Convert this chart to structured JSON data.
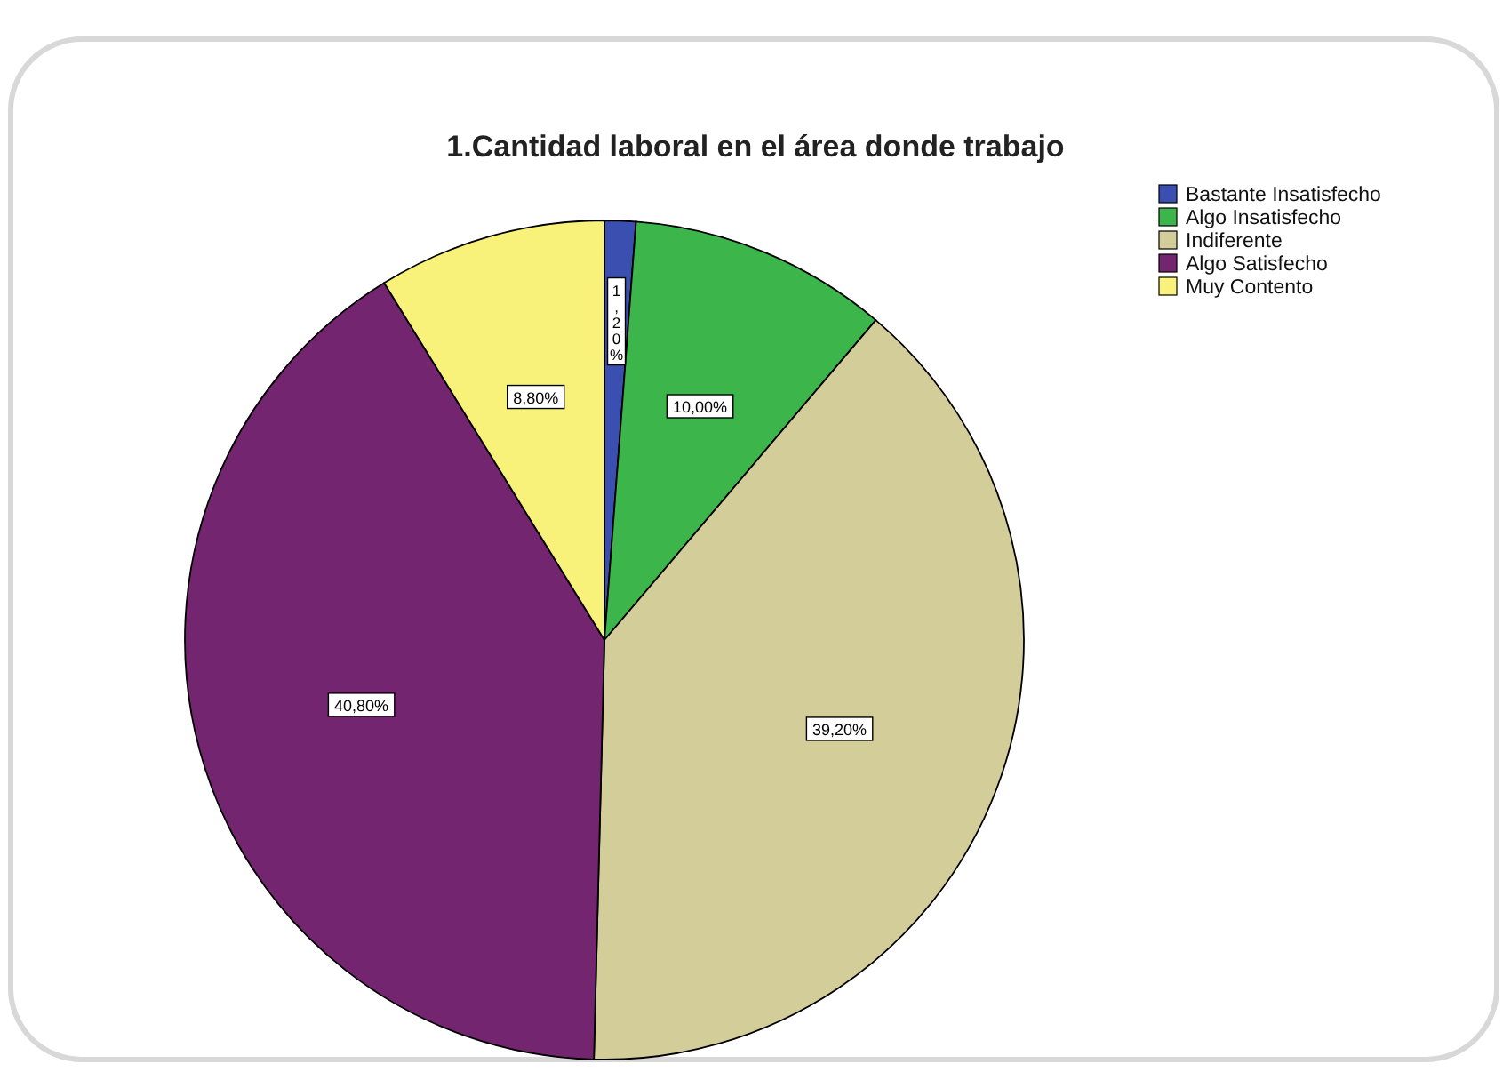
{
  "chart_data": {
    "type": "pie",
    "title": "1.Cantidad laboral en el área donde trabajo",
    "categories": [
      "Bastante Insatisfecho",
      "Algo Insatisfecho",
      "Indiferente",
      "Algo Satisfecho",
      "Muy Contento"
    ],
    "values": [
      1.2,
      10.0,
      39.2,
      40.8,
      8.8
    ],
    "colors": [
      "#3a4fb0",
      "#3cb54a",
      "#d3cd9a",
      "#74256f",
      "#f8f27a"
    ],
    "value_labels": [
      "1,20%",
      "10,00%",
      "39,20%",
      "40,80%",
      "8,80%"
    ],
    "legend": "top right"
  }
}
